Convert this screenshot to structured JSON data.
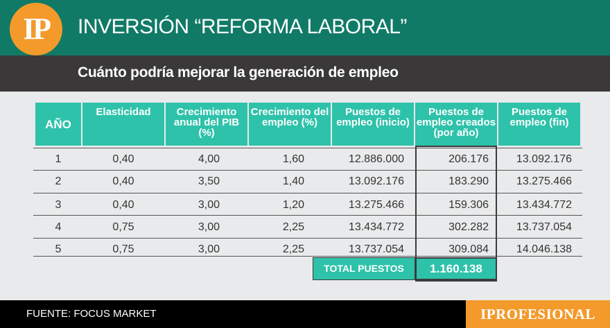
{
  "header": {
    "logo": "IP",
    "title": "INVERSIÓN “REFORMA LABORAL”"
  },
  "subheader": {
    "title": "Cuánto podría mejorar la generación de empleo"
  },
  "table": {
    "headers": [
      "AÑO",
      "Elasticidad",
      "Crecimiento anual del PIB (%)",
      "Crecimiento del empleo (%)",
      "Puestos de empleo (inicio)",
      "Puestos de empleo creados (por año)",
      "Puestos de empleo (fin)"
    ],
    "rows": [
      [
        "1",
        "0,40",
        "4,00",
        "1,60",
        "12.886.000",
        "206.176",
        "13.092.176"
      ],
      [
        "2",
        "0,40",
        "3,50",
        "1,40",
        "13.092.176",
        "183.290",
        "13.275.466"
      ],
      [
        "3",
        "0,40",
        "3,00",
        "1,20",
        "13.275.466",
        "159.306",
        "13.434.772"
      ],
      [
        "4",
        "0,75",
        "3,00",
        "2,25",
        "13.434.772",
        "302.282",
        "13.737.054"
      ],
      [
        "5",
        "0,75",
        "3,00",
        "2,25",
        "13.737.054",
        "309.084",
        "14.046.138"
      ]
    ],
    "total_label": "TOTAL PUESTOS",
    "total_value": "1.160.138"
  },
  "footer": {
    "source": "FUENTE: FOCUS MARKET",
    "brand": "IPROFESIONAL"
  },
  "colors": {
    "header_green": "#117a66",
    "teal": "#2ec2aa",
    "orange": "#f39a2b",
    "dark_bar": "#3a3838"
  }
}
